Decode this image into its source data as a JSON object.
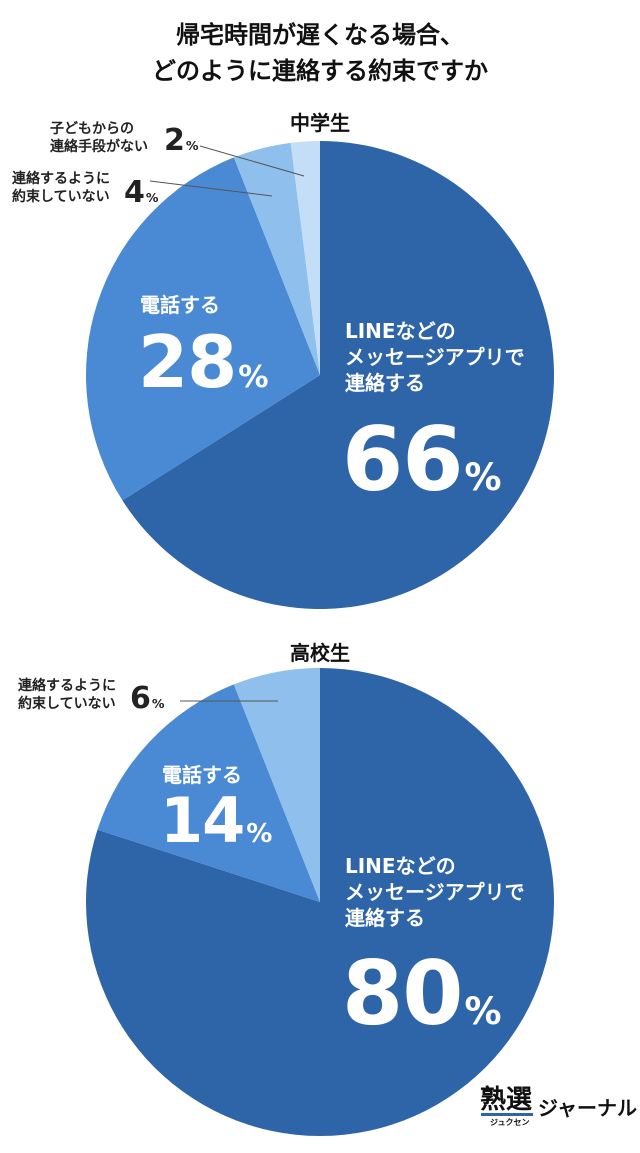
{
  "title": [
    "帰宅時間が遅くなる場合、",
    "どのように連絡する約束ですか"
  ],
  "chart_data": [
    {
      "type": "pie",
      "title": "中学生",
      "categories": [
        "LINEなどの\nメッセージアプリで\n連絡する",
        "電話する",
        "連絡するように\n約束していない",
        "子どもからの\n連絡手段がない"
      ],
      "values": [
        66,
        28,
        4,
        2
      ],
      "value_labels": [
        "66%",
        "28%",
        "4%",
        "2%"
      ],
      "colors": [
        "#2e64a8",
        "#4a8ad4",
        "#8fbfec",
        "#c3def6"
      ]
    },
    {
      "type": "pie",
      "title": "高校生",
      "categories": [
        "LINEなどの\nメッセージアプリで\n連絡する",
        "電話する",
        "連絡するように\n約束していない"
      ],
      "values": [
        80,
        14,
        6
      ],
      "value_labels": [
        "80%",
        "14%",
        "6%"
      ],
      "colors": [
        "#2e64a8",
        "#4a8ad4",
        "#8fbfec"
      ]
    }
  ],
  "footer": {
    "logo": "熟選",
    "reading": "ジュクセン",
    "name": "ジャーナル"
  }
}
